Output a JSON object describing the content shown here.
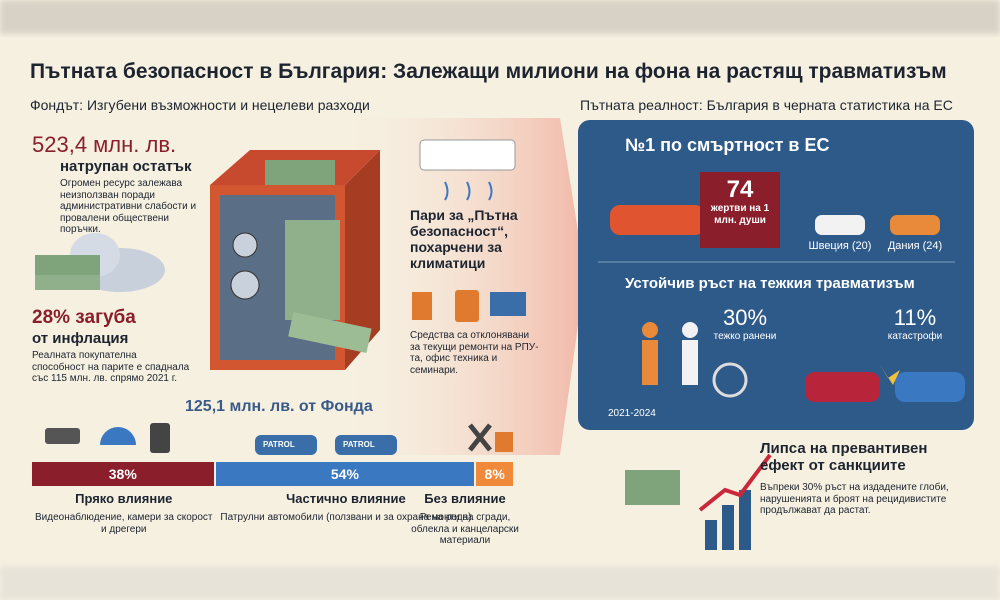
{
  "title": "Пътната безопасност в България: Залежащи милиони на фона на растящ травматизъм",
  "fund": {
    "heading": "Фондът: Изгубени възможности и нецелеви разходи",
    "surplus": {
      "amount": "523,4 млн. лв.",
      "label": "натрупан остатък",
      "text": "Огромен ресурс залежава неизползван поради административни слабости и провалени обществени поръчки."
    },
    "inflation": {
      "amount": "28% загуба",
      "label": "от инфлация",
      "text": "Реалната покупателна способност на парите е спаднала със 115 млн. лв. спрямо 2021 г."
    },
    "aircon": "Пари за „Пътна безопасност“, похарчени за климатици",
    "deviations": "Средства са отклонявани за текущи ремонти на РПУ-та, офис техника и семинари.",
    "split": {
      "title": "125,1 млн. лв. от Фонда",
      "patrol_badge": "PATROL",
      "segments": [
        {
          "value": 38,
          "label": "38%",
          "color": "#8b1e2b",
          "title": "Пряко влияние",
          "text": "Видеонаблюдение, камери за скорост и дрегери"
        },
        {
          "value": 54,
          "label": "54%",
          "color": "#3a78c2",
          "title": "Частично влияние",
          "text": "Патрулни автомобили (ползвани и за охрана на реда)"
        },
        {
          "value": 8,
          "label": "8%",
          "color": "#f08a3a",
          "title": "Без влияние",
          "text": "Ремонти на сгради, облекла и канцеларски материали"
        }
      ]
    }
  },
  "reality": {
    "heading": "Пътната реалност: България в черната статистика на ЕС",
    "rank": "№1 по смъртност в ЕС",
    "deaths": {
      "value": "74",
      "label": "жертви на 1 млн. души"
    },
    "comparisons": [
      "Швеция (20)",
      "Дания (24)"
    ],
    "growth_title": "Устойчив ръст на тежкия травматизъм",
    "injured": {
      "value": "30%",
      "label": "тежко ранени"
    },
    "crashes": {
      "value": "11%",
      "label": "катастрофи"
    },
    "period": "2021-2024",
    "sanctions": {
      "title": "Липса на превантивен ефект от санкциите",
      "text": "Въпреки 30% ръст на издадените глоби, нарушенията и броят на рецидивистите продължават да растат."
    }
  }
}
